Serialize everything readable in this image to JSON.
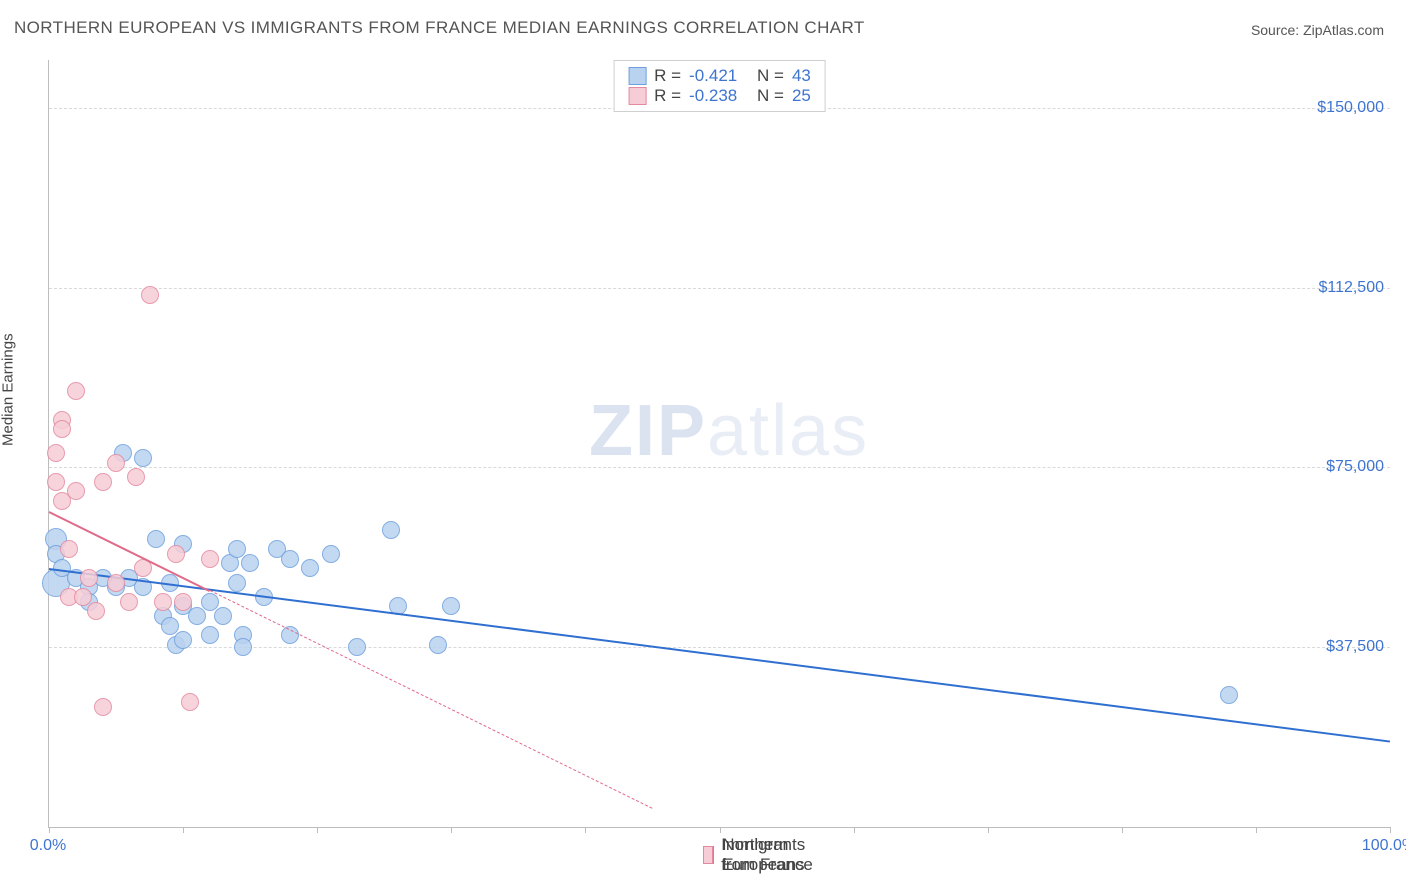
{
  "title": "NORTHERN EUROPEAN VS IMMIGRANTS FROM FRANCE MEDIAN EARNINGS CORRELATION CHART",
  "source_prefix": "Source: ",
  "source_name": "ZipAtlas.com",
  "y_axis_label": "Median Earnings",
  "watermark_a": "ZIP",
  "watermark_b": "atlas",
  "chart": {
    "type": "scatter",
    "xlim": [
      0,
      100
    ],
    "ylim": [
      0,
      160000
    ],
    "y_gridlines": [
      37500,
      75000,
      112500,
      150000
    ],
    "y_tick_labels": [
      "$37,500",
      "$75,000",
      "$112,500",
      "$150,000"
    ],
    "x_ticks": [
      0,
      10,
      20,
      30,
      40,
      50,
      60,
      70,
      80,
      90,
      100
    ],
    "x_tick_labels": {
      "0": "0.0%",
      "100": "100.0%"
    },
    "grid_color": "#d9d9d9",
    "axis_color": "#bdbdbd",
    "tick_label_color": "#3e74d0",
    "marker_radius": 9,
    "marker_stroke_width": 1.4,
    "series": [
      {
        "key": "northern_europeans",
        "label": "Northern Europeans",
        "fill": "#b9d2ef",
        "stroke": "#6fa0dd",
        "R": "-0.421",
        "N": "43",
        "regression": {
          "x1": 0,
          "y1": 54000,
          "x2": 100,
          "y2": 18000,
          "width": 2.5,
          "dashed_after_x": null,
          "color": "#2f6fd0"
        },
        "points": [
          {
            "x": 0.5,
            "y": 60000,
            "r": 11
          },
          {
            "x": 0.5,
            "y": 57000
          },
          {
            "x": 0.5,
            "y": 51000,
            "r": 14
          },
          {
            "x": 1.0,
            "y": 54000
          },
          {
            "x": 2.0,
            "y": 52000
          },
          {
            "x": 3.0,
            "y": 50000
          },
          {
            "x": 3.0,
            "y": 47000
          },
          {
            "x": 4.0,
            "y": 52000
          },
          {
            "x": 5.0,
            "y": 50000
          },
          {
            "x": 5.5,
            "y": 78000
          },
          {
            "x": 6.0,
            "y": 52000
          },
          {
            "x": 7.0,
            "y": 50000
          },
          {
            "x": 7.0,
            "y": 77000
          },
          {
            "x": 8.0,
            "y": 60000
          },
          {
            "x": 8.5,
            "y": 44000
          },
          {
            "x": 9.0,
            "y": 42000
          },
          {
            "x": 9.0,
            "y": 51000
          },
          {
            "x": 9.5,
            "y": 38000
          },
          {
            "x": 10.0,
            "y": 59000
          },
          {
            "x": 10.0,
            "y": 46000
          },
          {
            "x": 10.0,
            "y": 39000
          },
          {
            "x": 11.0,
            "y": 44000
          },
          {
            "x": 12.0,
            "y": 47000
          },
          {
            "x": 12.0,
            "y": 40000
          },
          {
            "x": 13.0,
            "y": 44000
          },
          {
            "x": 13.5,
            "y": 55000
          },
          {
            "x": 14.0,
            "y": 58000
          },
          {
            "x": 14.0,
            "y": 51000
          },
          {
            "x": 14.5,
            "y": 40000
          },
          {
            "x": 14.5,
            "y": 37500
          },
          {
            "x": 15.0,
            "y": 55000
          },
          {
            "x": 16.0,
            "y": 48000
          },
          {
            "x": 17.0,
            "y": 58000
          },
          {
            "x": 18.0,
            "y": 56000
          },
          {
            "x": 18.0,
            "y": 40000
          },
          {
            "x": 19.5,
            "y": 54000
          },
          {
            "x": 21.0,
            "y": 57000
          },
          {
            "x": 23.0,
            "y": 37500
          },
          {
            "x": 25.5,
            "y": 62000
          },
          {
            "x": 26.0,
            "y": 46000
          },
          {
            "x": 29.0,
            "y": 38000
          },
          {
            "x": 30.0,
            "y": 46000
          },
          {
            "x": 88.0,
            "y": 27500
          }
        ]
      },
      {
        "key": "immigrants_france",
        "label": "Immigrants from France",
        "fill": "#f6cdd6",
        "stroke": "#e48aa0",
        "R": "-0.238",
        "N": "25",
        "regression": {
          "x1": 0,
          "y1": 66000,
          "x2": 45,
          "y2": 4000,
          "width": 2,
          "dashed_after_x": 12,
          "color": "#e06a88"
        },
        "points": [
          {
            "x": 0.5,
            "y": 78000
          },
          {
            "x": 0.5,
            "y": 72000
          },
          {
            "x": 1.0,
            "y": 85000
          },
          {
            "x": 1.0,
            "y": 83000
          },
          {
            "x": 1.0,
            "y": 68000
          },
          {
            "x": 1.5,
            "y": 58000
          },
          {
            "x": 1.5,
            "y": 48000
          },
          {
            "x": 2.0,
            "y": 91000
          },
          {
            "x": 2.0,
            "y": 70000
          },
          {
            "x": 2.5,
            "y": 48000
          },
          {
            "x": 3.0,
            "y": 52000
          },
          {
            "x": 3.5,
            "y": 45000
          },
          {
            "x": 4.0,
            "y": 72000
          },
          {
            "x": 4.0,
            "y": 25000
          },
          {
            "x": 5.0,
            "y": 76000
          },
          {
            "x": 5.0,
            "y": 51000
          },
          {
            "x": 6.0,
            "y": 47000
          },
          {
            "x": 6.5,
            "y": 73000
          },
          {
            "x": 7.0,
            "y": 54000
          },
          {
            "x": 7.5,
            "y": 111000
          },
          {
            "x": 8.5,
            "y": 47000
          },
          {
            "x": 9.5,
            "y": 57000
          },
          {
            "x": 10.0,
            "y": 47000
          },
          {
            "x": 10.5,
            "y": 26000
          },
          {
            "x": 12.0,
            "y": 56000
          }
        ]
      }
    ]
  }
}
